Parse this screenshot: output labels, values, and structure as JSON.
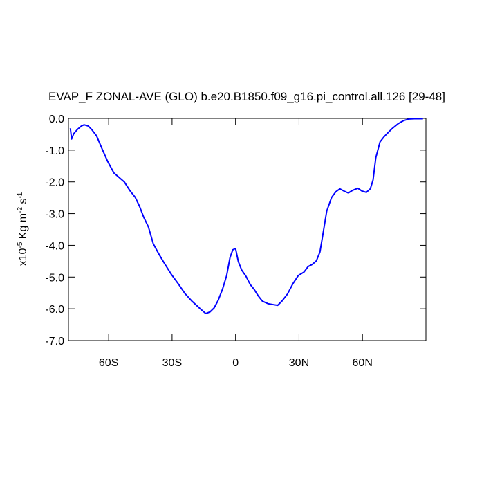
{
  "chart_data": {
    "type": "line",
    "title": "EVAP_F ZONAL-AVE (GLO) b.e20.B1850.f09_g16.pi_control.all.126 [29-48]",
    "ylabel": [
      "x10",
      "-5",
      " Kg m",
      "-2",
      " s",
      "-1"
    ],
    "x": [
      -78.1,
      -77.5,
      -76.5,
      -74.8,
      -72.9,
      -71.6,
      -69.6,
      -68.0,
      -65.7,
      -63.1,
      -60.5,
      -57.5,
      -55.2,
      -52.6,
      -50.0,
      -47.4,
      -45.4,
      -43.5,
      -41.2,
      -38.9,
      -36.3,
      -33.7,
      -30.4,
      -27.1,
      -23.9,
      -20.6,
      -16.7,
      -14.1,
      -12.1,
      -10.1,
      -8.2,
      -6.2,
      -4.2,
      -2.6,
      -1.3,
      0.0,
      1.3,
      2.9,
      4.9,
      6.9,
      8.8,
      10.8,
      12.7,
      15.4,
      18.0,
      19.9,
      21.9,
      24.5,
      27.1,
      29.7,
      32.4,
      34.3,
      36.3,
      38.2,
      39.9,
      41.2,
      43.1,
      45.4,
      47.4,
      49.3,
      51.3,
      53.3,
      55.2,
      57.8,
      59.8,
      61.8,
      63.7,
      65.0,
      66.3,
      68.3,
      70.3,
      72.2,
      74.2,
      76.8,
      79.4,
      82.0,
      84.6,
      88.6
    ],
    "series": [
      {
        "color": "#0000ff",
        "values": [
          -0.31,
          -0.65,
          -0.48,
          -0.35,
          -0.24,
          -0.2,
          -0.24,
          -0.35,
          -0.55,
          -0.96,
          -1.35,
          -1.72,
          -1.85,
          -2.0,
          -2.27,
          -2.49,
          -2.77,
          -3.1,
          -3.42,
          -3.95,
          -4.27,
          -4.56,
          -4.91,
          -5.21,
          -5.52,
          -5.76,
          -6.0,
          -6.15,
          -6.1,
          -5.97,
          -5.73,
          -5.39,
          -4.95,
          -4.38,
          -4.14,
          -4.1,
          -4.51,
          -4.78,
          -4.97,
          -5.23,
          -5.39,
          -5.6,
          -5.76,
          -5.84,
          -5.87,
          -5.89,
          -5.76,
          -5.54,
          -5.21,
          -4.95,
          -4.84,
          -4.67,
          -4.6,
          -4.49,
          -4.21,
          -3.69,
          -2.92,
          -2.49,
          -2.31,
          -2.22,
          -2.29,
          -2.35,
          -2.27,
          -2.2,
          -2.29,
          -2.33,
          -2.22,
          -1.94,
          -1.24,
          -0.74,
          -0.57,
          -0.44,
          -0.31,
          -0.17,
          -0.07,
          -0.02,
          -0.01,
          -0.01
        ]
      }
    ],
    "xlim": [
      -79,
      90
    ],
    "xticks": [
      {
        "value": -60,
        "label": "60S"
      },
      {
        "value": -30,
        "label": "30S"
      },
      0,
      {
        "value": 30,
        "label": "30N"
      },
      {
        "value": 60,
        "label": "60N"
      }
    ],
    "ylim": [
      -7,
      0
    ],
    "yticks": [
      {
        "value": 0,
        "label": "0.0"
      },
      {
        "value": -1,
        "label": "-1.0"
      },
      {
        "value": -2,
        "label": "-2.0"
      },
      {
        "value": -3,
        "label": "-3.0"
      },
      {
        "value": -4,
        "label": "-4.0"
      },
      {
        "value": -5,
        "label": "-5.0"
      },
      {
        "value": -6,
        "label": "-6.0"
      },
      {
        "value": -7,
        "label": "-7.0"
      }
    ]
  }
}
